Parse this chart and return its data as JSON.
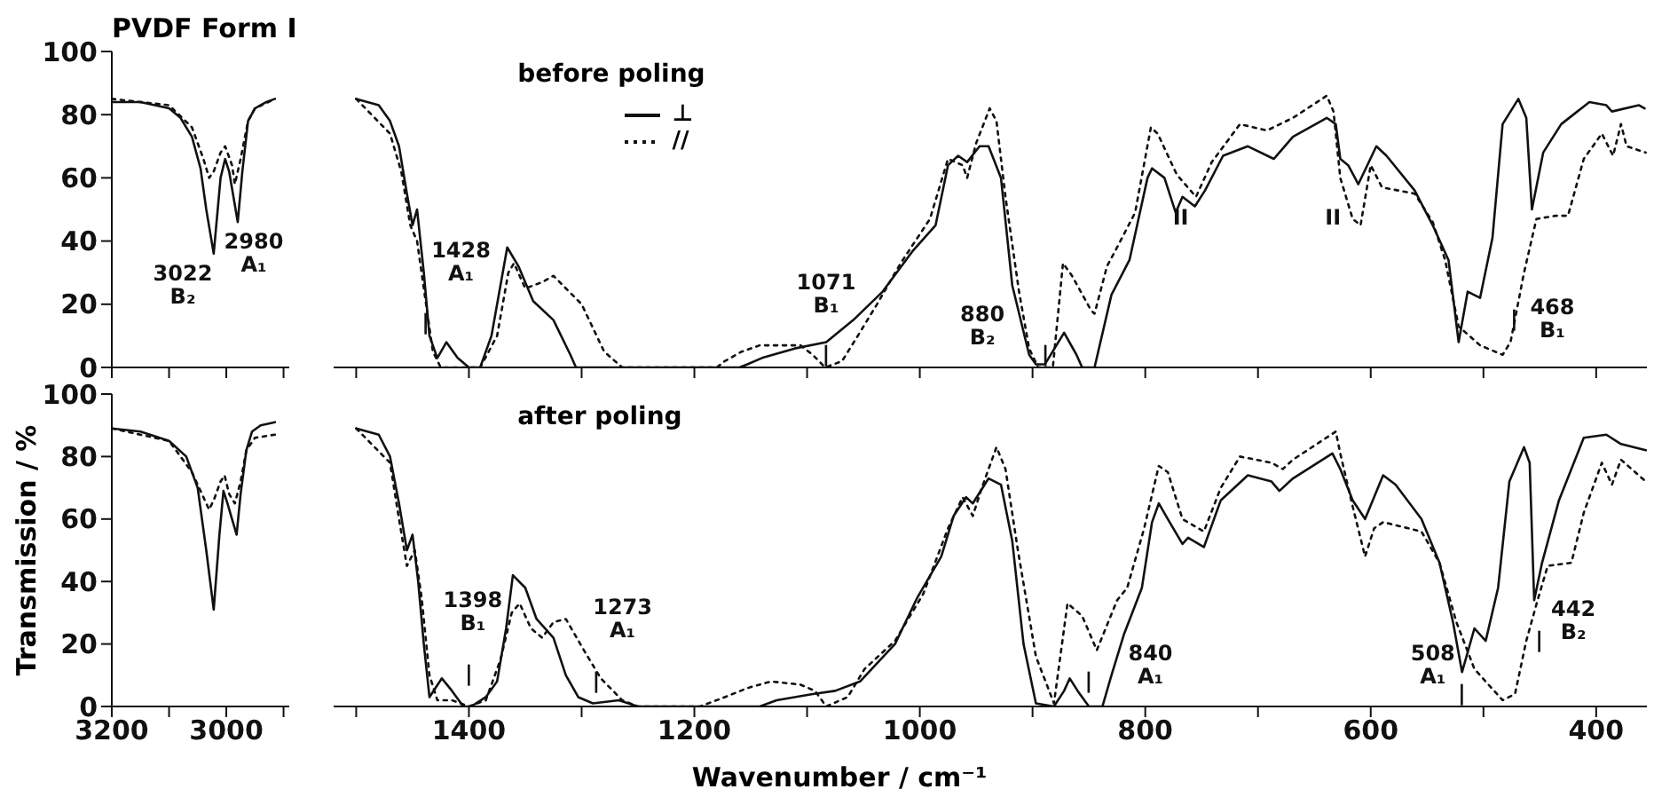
{
  "chart_data": [
    {
      "type": "line",
      "title": "PVDF Form I",
      "xlim": [
        3200,
        2890
      ],
      "xticks": [
        3200,
        {
          "value": 3100,
          "label": null
        },
        3000,
        {
          "value": 2900,
          "label": null
        }
      ],
      "ylim": [
        0,
        100
      ],
      "yticks": [
        0,
        20,
        40,
        60,
        80,
        100
      ],
      "tick_labels": "y",
      "series": [
        {
          "color": "#111111",
          "line_style": "solid",
          "x": [
            3200,
            3150,
            3100,
            3080,
            3060,
            3045,
            3035,
            3022,
            3010,
            3002,
            2995,
            2980,
            2972,
            2962,
            2950,
            2930,
            2915
          ],
          "values": [
            84,
            84,
            82,
            79,
            73,
            63,
            50,
            36,
            60,
            66,
            62,
            46,
            62,
            78,
            82,
            84,
            85
          ]
        },
        {
          "color": "#111111",
          "line_style": "dotted",
          "x": [
            3200,
            3100,
            3060,
            3040,
            3030,
            3022,
            3010,
            3002,
            2990,
            2985,
            2975,
            2962,
            2950,
            2915
          ],
          "values": [
            85,
            83,
            76,
            66,
            60,
            62,
            68,
            70,
            64,
            58,
            66,
            78,
            82,
            85
          ]
        }
      ],
      "annotations": [
        "3022\nB₂",
        "2980\nA₁"
      ]
    },
    {
      "type": "line",
      "subtitle": "before poling",
      "xlim": [
        1520,
        355
      ],
      "xticks": [
        {
          "value": 1500,
          "label": null
        },
        1400,
        {
          "value": 1300,
          "label": null
        },
        1200,
        {
          "value": 1100,
          "label": null
        },
        1000,
        {
          "value": 900,
          "label": null
        },
        800,
        {
          "value": 700,
          "label": null
        },
        600,
        {
          "value": 500,
          "label": null
        },
        400
      ],
      "ylim": [
        0,
        100
      ],
      "yticks": [
        0,
        20,
        40,
        60,
        80,
        100
      ],
      "tick_labels": false,
      "legend": "top left",
      "series": [
        {
          "name": "⊥",
          "color": "#111111",
          "line_style": "solid",
          "x": [
            1500,
            1480,
            1470,
            1462,
            1455,
            1450,
            1446,
            1440,
            1435,
            1428,
            1420,
            1410,
            1400,
            1390,
            1380,
            1372,
            1366,
            1356,
            1343,
            1325,
            1310,
            1305,
            1160,
            1153,
            1140,
            1111,
            1083,
            1059,
            1033,
            1006,
            986,
            975,
            966,
            958,
            947,
            939,
            928,
            918,
            903,
            897,
            889,
            872,
            861,
            856,
            845,
            830,
            814,
            798,
            794,
            783,
            773,
            767,
            756,
            747,
            731,
            709,
            686,
            669,
            639,
            631,
            627,
            620,
            611,
            595,
            586,
            561,
            545,
            531,
            522,
            514,
            503,
            492,
            483,
            469,
            462,
            457,
            447,
            431,
            406,
            391,
            386,
            362,
            357
          ],
          "values": [
            85,
            83,
            78,
            70,
            55,
            45,
            50,
            30,
            10,
            3,
            8,
            3,
            0,
            0,
            10,
            26,
            38,
            32,
            21,
            15,
            4,
            0,
            0,
            1,
            3,
            6,
            8,
            15,
            24,
            37,
            45,
            64,
            67,
            65,
            70,
            70,
            60,
            26,
            4,
            1,
            1,
            11,
            4,
            0,
            0,
            23,
            34,
            60,
            63,
            60,
            49,
            54,
            51,
            56,
            67,
            70,
            66,
            73,
            79,
            77,
            66,
            64,
            58,
            70,
            67,
            56,
            45,
            34,
            8,
            24,
            22,
            41,
            77,
            85,
            79,
            50,
            68,
            77,
            84,
            83,
            81,
            83,
            82
          ]
        },
        {
          "name": "//",
          "color": "#111111",
          "line_style": "dotted",
          "x": [
            1500,
            1470,
            1460,
            1452,
            1446,
            1440,
            1432,
            1425,
            1390,
            1375,
            1365,
            1360,
            1350,
            1335,
            1325,
            1300,
            1280,
            1264,
            1180,
            1173,
            1158,
            1142,
            1106,
            1095,
            1084,
            1069,
            1055,
            1038,
            1017,
            991,
            975,
            962,
            958,
            950,
            938,
            932,
            924,
            912,
            903,
            895,
            882,
            873,
            865,
            848,
            845,
            834,
            825,
            809,
            795,
            789,
            772,
            755,
            741,
            716,
            692,
            669,
            639,
            633,
            627,
            616,
            609,
            600,
            590,
            561,
            545,
            534,
            522,
            503,
            483,
            476,
            464,
            453,
            436,
            425,
            411,
            395,
            385,
            378,
            373,
            356
          ],
          "values": [
            85,
            74,
            62,
            45,
            40,
            25,
            5,
            0,
            0,
            10,
            30,
            33,
            25,
            27,
            29,
            20,
            5,
            0,
            0,
            2,
            5,
            7,
            7,
            4,
            0,
            2,
            10,
            20,
            33,
            47,
            66,
            64,
            60,
            71,
            82,
            78,
            54,
            24,
            6,
            0,
            0,
            33,
            29,
            18,
            17,
            32,
            38,
            49,
            76,
            74,
            61,
            54,
            65,
            77,
            75,
            79,
            86,
            81,
            60,
            47,
            45,
            64,
            57,
            55,
            46,
            34,
            13,
            7,
            4,
            8,
            30,
            47,
            48,
            48,
            66,
            74,
            67,
            77,
            70,
            68
          ]
        }
      ],
      "annotations": [
        "1428\nA₁",
        "|",
        "1071\nB₁",
        "|",
        "880\nB₂",
        "|",
        "II",
        "II",
        "|",
        "468\nB₁"
      ]
    },
    {
      "type": "line",
      "ylabel": "Transmission / %",
      "xlim": [
        3200,
        2890
      ],
      "xticks": [
        3200,
        {
          "value": 3100,
          "label": null
        },
        3000,
        {
          "value": 2900,
          "label": null
        }
      ],
      "ylim": [
        0,
        100
      ],
      "yticks": [
        0,
        20,
        40,
        60,
        80,
        100
      ],
      "series": [
        {
          "color": "#111111",
          "line_style": "solid",
          "x": [
            3200,
            3150,
            3100,
            3070,
            3050,
            3035,
            3022,
            3012,
            3005,
            2998,
            2990,
            2982,
            2975,
            2965,
            2955,
            2940,
            2915
          ],
          "values": [
            89,
            88,
            85,
            80,
            70,
            50,
            31,
            55,
            69,
            65,
            60,
            55,
            68,
            82,
            88,
            90,
            91
          ]
        },
        {
          "color": "#111111",
          "line_style": "dotted",
          "x": [
            3200,
            3100,
            3060,
            3040,
            3030,
            3022,
            3010,
            3003,
            2995,
            2985,
            2975,
            2965,
            2950,
            2915
          ],
          "values": [
            89,
            85,
            75,
            67,
            63,
            66,
            72,
            74,
            68,
            65,
            72,
            82,
            86,
            87
          ]
        }
      ]
    },
    {
      "type": "line",
      "subtitle": "after poling",
      "xlabel": "Wavenumber / cm⁻¹",
      "xlim": [
        1520,
        355
      ],
      "xticks": [
        {
          "value": 1500,
          "label": null
        },
        1400,
        {
          "value": 1300,
          "label": null
        },
        1200,
        {
          "value": 1100,
          "label": null
        },
        1000,
        {
          "value": 900,
          "label": null
        },
        800,
        {
          "value": 700,
          "label": null
        },
        600,
        {
          "value": 500,
          "label": null
        },
        400
      ],
      "ylim": [
        0,
        100
      ],
      "yticks": [
        0,
        20,
        40,
        60,
        80,
        100
      ],
      "tick_labels": "x",
      "series": [
        {
          "color": "#111111",
          "line_style": "solid",
          "x": [
            1500,
            1480,
            1470,
            1462,
            1455,
            1450,
            1445,
            1440,
            1435,
            1424,
            1415,
            1405,
            1398,
            1385,
            1375,
            1367,
            1361,
            1350,
            1340,
            1325,
            1314,
            1303,
            1290,
            1267,
            1250,
            1142,
            1127,
            1095,
            1075,
            1053,
            1022,
            1002,
            981,
            970,
            959,
            953,
            939,
            928,
            918,
            908,
            897,
            881,
            872,
            867,
            860,
            850,
            838,
            830,
            819,
            803,
            794,
            788,
            780,
            767,
            762,
            748,
            733,
            709,
            688,
            681,
            669,
            634,
            627,
            616,
            605,
            589,
            578,
            555,
            539,
            527,
            519,
            508,
            498,
            487,
            477,
            464,
            459,
            455,
            448,
            433,
            411,
            391,
            378,
            356
          ],
          "values": [
            89,
            87,
            80,
            65,
            50,
            55,
            40,
            20,
            3,
            9,
            5,
            0,
            0,
            3,
            8,
            25,
            42,
            38,
            28,
            22,
            10,
            3,
            1,
            2,
            0,
            0,
            2,
            4,
            5,
            8,
            20,
            35,
            48,
            61,
            67,
            65,
            73,
            71,
            53,
            20,
            1,
            0,
            5,
            9,
            5,
            0,
            0,
            10,
            23,
            38,
            59,
            65,
            60,
            52,
            54,
            51,
            66,
            74,
            72,
            69,
            73,
            81,
            76,
            66,
            60,
            74,
            71,
            60,
            46,
            27,
            11,
            25,
            21,
            38,
            72,
            83,
            78,
            34,
            46,
            66,
            86,
            87,
            84,
            82
          ]
        },
        {
          "color": "#111111",
          "line_style": "dotted",
          "x": [
            1500,
            1470,
            1462,
            1455,
            1448,
            1442,
            1435,
            1428,
            1415,
            1400,
            1385,
            1372,
            1362,
            1355,
            1345,
            1335,
            1325,
            1314,
            1298,
            1283,
            1264,
            1250,
            1195,
            1173,
            1152,
            1132,
            1106,
            1093,
            1083,
            1064,
            1049,
            1022,
            997,
            975,
            962,
            953,
            945,
            932,
            924,
            913,
            897,
            881,
            869,
            856,
            843,
            825,
            816,
            801,
            788,
            780,
            767,
            748,
            733,
            716,
            688,
            678,
            669,
            631,
            627,
            616,
            605,
            597,
            589,
            555,
            539,
            524,
            508,
            483,
            472,
            462,
            452,
            443,
            422,
            411,
            395,
            386,
            378,
            356
          ],
          "values": [
            89,
            78,
            60,
            45,
            50,
            35,
            10,
            2,
            2,
            0,
            2,
            15,
            30,
            33,
            25,
            22,
            27,
            28,
            18,
            9,
            2,
            0,
            0,
            3,
            6,
            8,
            7,
            5,
            0,
            3,
            12,
            21,
            36,
            57,
            67,
            61,
            70,
            83,
            76,
            50,
            16,
            1,
            33,
            29,
            18,
            34,
            38,
            57,
            77,
            75,
            60,
            56,
            70,
            80,
            78,
            76,
            79,
            88,
            81,
            64,
            48,
            57,
            59,
            56,
            46,
            27,
            12,
            2,
            4,
            21,
            34,
            45,
            46,
            62,
            78,
            71,
            79,
            72
          ]
        }
      ],
      "annotations": [
        "1398\nB₁",
        "|",
        "1273\nA₁",
        "|",
        "840\nA₁",
        "|",
        "508\nA₁",
        "|",
        "442\nB₂",
        "|"
      ]
    }
  ]
}
